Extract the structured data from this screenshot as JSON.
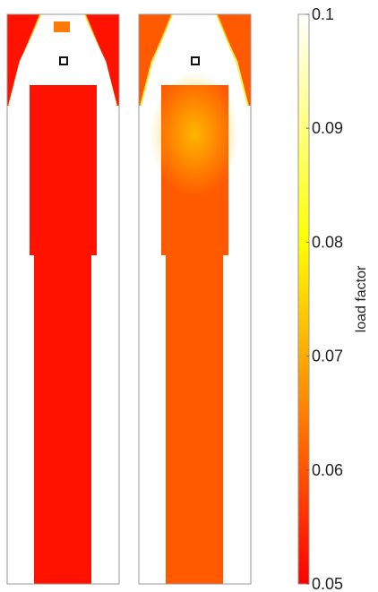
{
  "chart_data": {
    "type": "heatmap",
    "panels": [
      {
        "name": "",
        "peak_value": 0.05,
        "body_value": 0.0505,
        "marker": "selected-cell"
      },
      {
        "name": "",
        "peak_value": 0.069,
        "body_value": 0.0595,
        "marker": "selected-cell"
      }
    ],
    "colorbar": {
      "label": "load factor",
      "range": [
        0.05,
        0.1
      ],
      "ticks": [
        0.05,
        0.06,
        0.07,
        0.08,
        0.09,
        0.1
      ],
      "tick_labels": [
        "0.05",
        "0.06",
        "0.07",
        "0.08",
        "0.09",
        "0.1"
      ],
      "colormap": "autumn-to-white",
      "colors": [
        "#ff0000",
        "#ffff00",
        "#ffffff"
      ]
    },
    "grid": false,
    "title": "",
    "xlabel": "",
    "ylabel": ""
  }
}
